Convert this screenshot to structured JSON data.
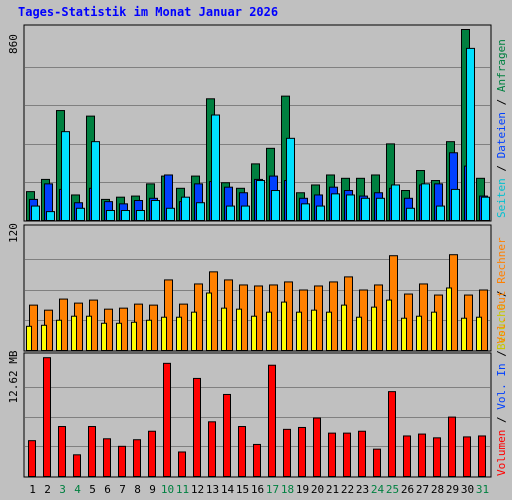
{
  "chart_data": [
    {
      "type": "bar",
      "title": "Tages-Statistik im Monat Januar 2026",
      "ylabel": "860",
      "ylim": [
        0,
        860
      ],
      "grid": true,
      "categories": [
        "1",
        "2",
        "3",
        "4",
        "5",
        "6",
        "7",
        "8",
        "9",
        "10",
        "11",
        "12",
        "13",
        "14",
        "15",
        "16",
        "17",
        "18",
        "19",
        "20",
        "21",
        "22",
        "23",
        "24",
        "25",
        "26",
        "27",
        "28",
        "29",
        "30",
        "31"
      ],
      "weekend_days": [
        "3",
        "4",
        "10",
        "11",
        "17",
        "18",
        "24",
        "25",
        "31"
      ],
      "legend": [
        "Anfragen",
        "Dateien",
        "Seiten"
      ],
      "series": [
        {
          "name": "Anfragen",
          "values": [
            130,
            185,
            495,
            115,
            470,
            95,
            105,
            110,
            165,
            200,
            145,
            200,
            548,
            170,
            145,
            255,
            325,
            560,
            125,
            160,
            205,
            190,
            190,
            205,
            345,
            135,
            225,
            180,
            355,
            860,
            190
          ]
        },
        {
          "name": "Dateien",
          "values": [
            95,
            165,
            140,
            80,
            145,
            85,
            75,
            90,
            100,
            205,
            85,
            165,
            175,
            150,
            125,
            185,
            200,
            180,
            100,
            115,
            150,
            135,
            110,
            125,
            145,
            100,
            160,
            165,
            305,
            245,
            110
          ]
        },
        {
          "name": "Seiten",
          "values": [
            65,
            40,
            400,
            55,
            355,
            45,
            45,
            45,
            90,
            55,
            105,
            80,
            475,
            65,
            65,
            180,
            135,
            370,
            75,
            65,
            120,
            115,
            100,
            100,
            160,
            55,
            165,
            65,
            140,
            775,
            105
          ]
        }
      ]
    },
    {
      "type": "bar",
      "ylabel": "120",
      "ylim": [
        0,
        120
      ],
      "grid": true,
      "legend": [
        "Rechner",
        "Besuche"
      ],
      "series": [
        {
          "name": "Rechner",
          "values": [
            45,
            40,
            51,
            47,
            50,
            41,
            42,
            46,
            45,
            70,
            46,
            66,
            78,
            70,
            65,
            64,
            65,
            68,
            60,
            64,
            68,
            73,
            60,
            65,
            94,
            56,
            66,
            55,
            95,
            55,
            60
          ]
        },
        {
          "name": "Besuche",
          "values": [
            24,
            25,
            30,
            34,
            34,
            27,
            27,
            28,
            30,
            33,
            33,
            38,
            57,
            42,
            41,
            34,
            38,
            48,
            38,
            40,
            38,
            45,
            33,
            43,
            50,
            32,
            34,
            38,
            62,
            32,
            33
          ]
        }
      ]
    },
    {
      "type": "bar",
      "ylabel": "12.62 MB",
      "ylim": [
        0,
        12.62
      ],
      "grid": true,
      "legend": [
        "Vol. Out",
        "Vol. In",
        "Volumen"
      ],
      "series": [
        {
          "name": "Volumen",
          "values": [
            3.8,
            12.6,
            5.3,
            2.3,
            5.3,
            4.0,
            3.2,
            3.9,
            4.8,
            12.0,
            2.6,
            10.4,
            5.8,
            8.7,
            5.3,
            3.4,
            11.8,
            5.0,
            5.2,
            6.2,
            4.6,
            4.6,
            4.8,
            2.9,
            9.0,
            4.3,
            4.5,
            4.1,
            6.3,
            4.2,
            4.3
          ]
        }
      ]
    }
  ]
}
